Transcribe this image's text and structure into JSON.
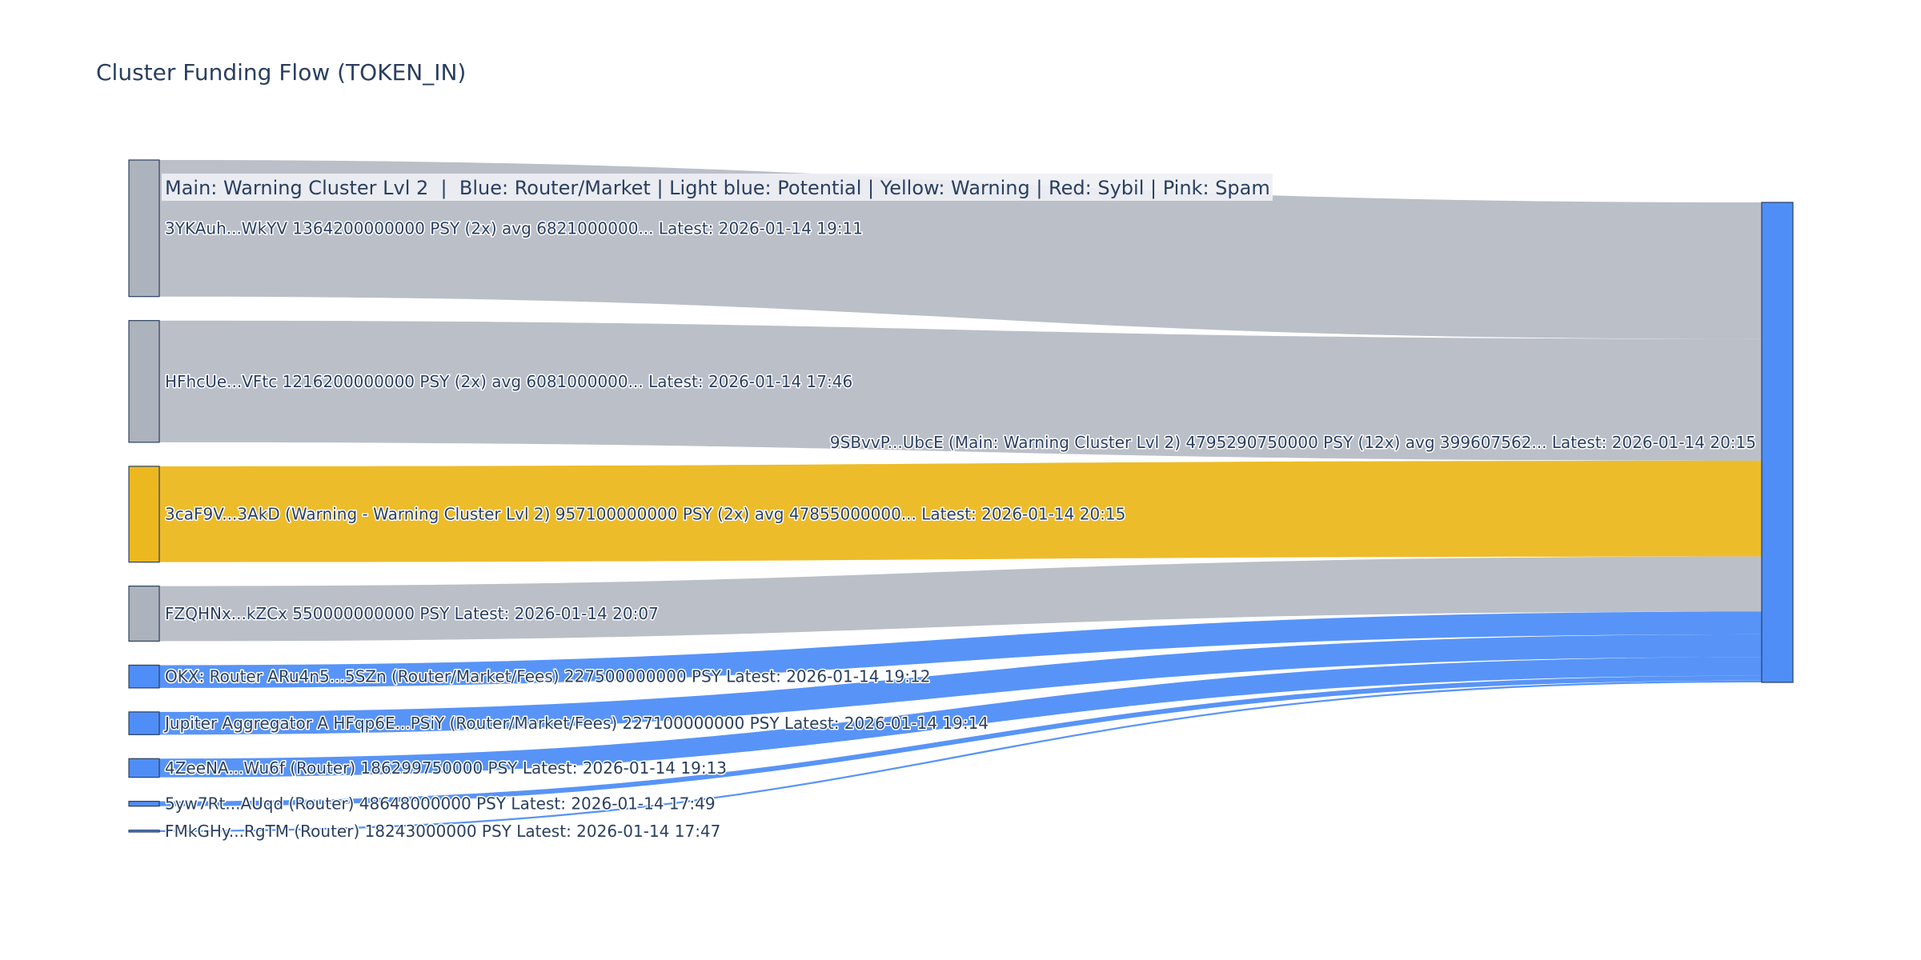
{
  "chart_data": {
    "type": "sankey",
    "title": "Cluster Funding Flow (TOKEN_IN)",
    "annotation": "Main: Warning Cluster Lvl 2  |  Blue: Router/Market | Light blue: Potential | Yellow: Warning | Red: Sybil | Pink: Spam",
    "colors": {
      "gray_node": "#adb3bd",
      "gray_link": "#bbbfc8",
      "yellow": "#ecb820",
      "blue": "#4f8ef7",
      "node_border": "#2a3f5f"
    },
    "target": {
      "label": "9SBvvP...UbcE (Main: Warning Cluster Lvl 2) 4795290750000 PSY (12x) avg 399607562... Latest: 2026-01-14 20:15",
      "value": 4795290750000,
      "color": "blue"
    },
    "sources": [
      {
        "label": "3YKAuh...WkYV 1364200000000 PSY (2x) avg 6821000000... Latest: 2026-01-14 19:11",
        "value": 1364200000000,
        "color": "gray"
      },
      {
        "label": "HFhcUe...VFtc 1216200000000 PSY (2x) avg 6081000000... Latest: 2026-01-14 17:46",
        "value": 1216200000000,
        "color": "gray"
      },
      {
        "label": "3caF9V...3AkD (Warning - Warning Cluster Lvl 2) 957100000000 PSY (2x) avg 47855000000... Latest: 2026-01-14 20:15",
        "value": 957100000000,
        "color": "yellow"
      },
      {
        "label": "FZQHNx...kZCx 550000000000 PSY Latest: 2026-01-14 20:07",
        "value": 550000000000,
        "color": "gray"
      },
      {
        "label": "OKX: Router ARu4n5...5SZn (Router/Market/Fees) 227500000000 PSY Latest: 2026-01-14 19:12",
        "value": 227500000000,
        "color": "blue"
      },
      {
        "label": "Jupiter Aggregator A HFqp6E...PSiY (Router/Market/Fees) 227100000000 PSY Latest: 2026-01-14 19:14",
        "value": 227100000000,
        "color": "blue"
      },
      {
        "label": "4ZeeNA...Wu6f (Router) 186299750000 PSY Latest: 2026-01-14 19:13",
        "value": 186299750000,
        "color": "blue"
      },
      {
        "label": "5yw7Rt...AUqd (Router) 48648000000 PSY Latest: 2026-01-14 17:49",
        "value": 48648000000,
        "color": "blue"
      },
      {
        "label": "FMkGHy...RgTM (Router) 18243000000 PSY Latest: 2026-01-14 17:47",
        "value": 18243000000,
        "color": "blue"
      }
    ]
  }
}
